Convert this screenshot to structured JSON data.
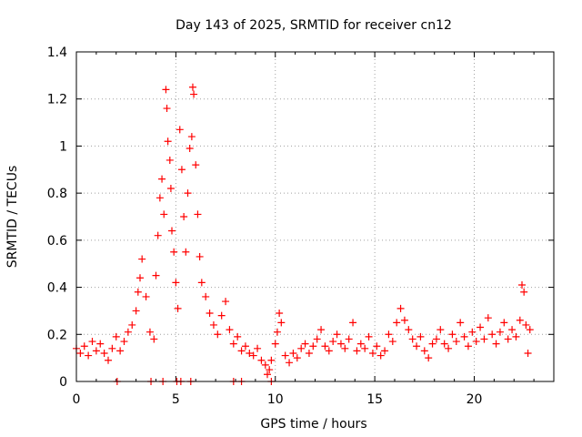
{
  "chart_data": {
    "type": "scatter",
    "title": "Day 143 of 2025, SRMTID for receiver cn12",
    "xlabel": "GPS time / hours",
    "ylabel": "SRMTID / TECUs",
    "xlim": [
      0,
      24
    ],
    "ylim": [
      0,
      1.4
    ],
    "xticks": [
      "0",
      "5",
      "10",
      "15",
      "20"
    ],
    "yticks": [
      "0",
      "0.2",
      "0.4",
      "0.6",
      "0.8",
      "1",
      "1.2",
      "1.4"
    ],
    "grid": true,
    "marker": "+",
    "color": "#ff0000",
    "series": [
      {
        "name": "SRMTID",
        "points": [
          [
            0.0,
            0.14
          ],
          [
            0.2,
            0.12
          ],
          [
            0.4,
            0.15
          ],
          [
            0.6,
            0.11
          ],
          [
            0.8,
            0.17
          ],
          [
            1.0,
            0.13
          ],
          [
            1.2,
            0.16
          ],
          [
            1.4,
            0.12
          ],
          [
            1.6,
            0.09
          ],
          [
            1.8,
            0.14
          ],
          [
            2.0,
            0.19
          ],
          [
            2.2,
            0.13
          ],
          [
            2.4,
            0.17
          ],
          [
            2.6,
            0.21
          ],
          [
            2.8,
            0.24
          ],
          [
            3.0,
            0.3
          ],
          [
            3.1,
            0.38
          ],
          [
            3.2,
            0.44
          ],
          [
            3.3,
            0.52
          ],
          [
            3.5,
            0.36
          ],
          [
            3.7,
            0.21
          ],
          [
            3.9,
            0.18
          ],
          [
            4.0,
            0.45
          ],
          [
            4.1,
            0.62
          ],
          [
            4.2,
            0.78
          ],
          [
            4.3,
            0.86
          ],
          [
            4.4,
            0.71
          ],
          [
            4.5,
            1.24
          ],
          [
            4.55,
            1.16
          ],
          [
            4.6,
            1.02
          ],
          [
            4.7,
            0.94
          ],
          [
            4.75,
            0.82
          ],
          [
            4.8,
            0.64
          ],
          [
            4.9,
            0.55
          ],
          [
            5.0,
            0.42
          ],
          [
            5.1,
            0.31
          ],
          [
            5.2,
            1.07
          ],
          [
            5.3,
            0.9
          ],
          [
            5.4,
            0.7
          ],
          [
            5.5,
            0.55
          ],
          [
            5.6,
            0.8
          ],
          [
            5.7,
            0.99
          ],
          [
            5.8,
            1.04
          ],
          [
            5.85,
            1.25
          ],
          [
            5.9,
            1.22
          ],
          [
            6.0,
            0.92
          ],
          [
            6.1,
            0.71
          ],
          [
            6.2,
            0.53
          ],
          [
            6.3,
            0.42
          ],
          [
            6.5,
            0.36
          ],
          [
            6.7,
            0.29
          ],
          [
            6.9,
            0.24
          ],
          [
            7.1,
            0.2
          ],
          [
            7.3,
            0.28
          ],
          [
            7.5,
            0.34
          ],
          [
            7.7,
            0.22
          ],
          [
            7.9,
            0.16
          ],
          [
            8.1,
            0.19
          ],
          [
            8.3,
            0.13
          ],
          [
            8.5,
            0.15
          ],
          [
            8.7,
            0.12
          ],
          [
            8.9,
            0.11
          ],
          [
            9.1,
            0.14
          ],
          [
            9.3,
            0.09
          ],
          [
            9.5,
            0.07
          ],
          [
            9.6,
            0.03
          ],
          [
            9.7,
            0.05
          ],
          [
            9.8,
            0.09
          ],
          [
            10.0,
            0.16
          ],
          [
            10.1,
            0.21
          ],
          [
            10.2,
            0.29
          ],
          [
            10.3,
            0.25
          ],
          [
            10.5,
            0.11
          ],
          [
            10.7,
            0.08
          ],
          [
            10.9,
            0.12
          ],
          [
            11.1,
            0.1
          ],
          [
            11.3,
            0.14
          ],
          [
            11.5,
            0.16
          ],
          [
            11.7,
            0.12
          ],
          [
            11.9,
            0.15
          ],
          [
            12.1,
            0.18
          ],
          [
            12.3,
            0.22
          ],
          [
            12.5,
            0.15
          ],
          [
            12.7,
            0.13
          ],
          [
            12.9,
            0.17
          ],
          [
            13.1,
            0.2
          ],
          [
            13.3,
            0.16
          ],
          [
            13.5,
            0.14
          ],
          [
            13.7,
            0.18
          ],
          [
            13.9,
            0.25
          ],
          [
            14.1,
            0.13
          ],
          [
            14.3,
            0.16
          ],
          [
            14.5,
            0.14
          ],
          [
            14.7,
            0.19
          ],
          [
            14.9,
            0.12
          ],
          [
            15.1,
            0.15
          ],
          [
            15.3,
            0.11
          ],
          [
            15.5,
            0.13
          ],
          [
            15.7,
            0.2
          ],
          [
            15.9,
            0.17
          ],
          [
            16.1,
            0.25
          ],
          [
            16.3,
            0.31
          ],
          [
            16.5,
            0.26
          ],
          [
            16.7,
            0.22
          ],
          [
            16.9,
            0.18
          ],
          [
            17.1,
            0.15
          ],
          [
            17.3,
            0.19
          ],
          [
            17.5,
            0.13
          ],
          [
            17.7,
            0.1
          ],
          [
            17.9,
            0.16
          ],
          [
            18.1,
            0.18
          ],
          [
            18.3,
            0.22
          ],
          [
            18.5,
            0.16
          ],
          [
            18.7,
            0.14
          ],
          [
            18.9,
            0.2
          ],
          [
            19.1,
            0.17
          ],
          [
            19.3,
            0.25
          ],
          [
            19.5,
            0.19
          ],
          [
            19.7,
            0.15
          ],
          [
            19.9,
            0.21
          ],
          [
            20.1,
            0.17
          ],
          [
            20.3,
            0.23
          ],
          [
            20.5,
            0.18
          ],
          [
            20.7,
            0.27
          ],
          [
            20.9,
            0.2
          ],
          [
            21.1,
            0.16
          ],
          [
            21.3,
            0.21
          ],
          [
            21.5,
            0.25
          ],
          [
            21.7,
            0.18
          ],
          [
            21.9,
            0.22
          ],
          [
            22.1,
            0.19
          ],
          [
            22.3,
            0.26
          ],
          [
            22.4,
            0.41
          ],
          [
            22.5,
            0.38
          ],
          [
            22.6,
            0.24
          ],
          [
            22.7,
            0.12
          ],
          [
            22.8,
            0.22
          ],
          [
            2.05,
            0.0
          ],
          [
            3.75,
            0.0
          ],
          [
            4.35,
            0.0
          ],
          [
            5.05,
            0.0
          ],
          [
            5.25,
            0.0
          ],
          [
            5.75,
            0.0
          ],
          [
            7.9,
            0.0
          ],
          [
            8.3,
            0.0
          ],
          [
            9.8,
            0.0
          ]
        ]
      }
    ]
  }
}
